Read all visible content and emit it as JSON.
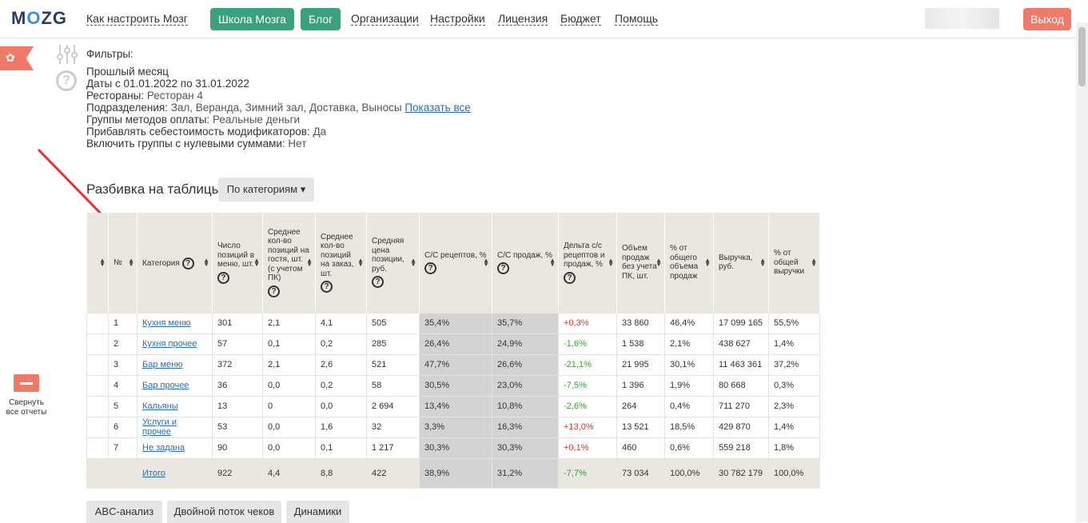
{
  "header": {
    "logo_text": "MOZG",
    "nav": [
      {
        "label": "Как настроить Мозг"
      },
      {
        "label": "Школа Мозга"
      },
      {
        "label": "Блог"
      },
      {
        "label": "Организации"
      },
      {
        "label": "Настройки"
      },
      {
        "label": "Лицензия"
      },
      {
        "label": "Бюджет"
      },
      {
        "label": "Помощь"
      }
    ],
    "logout_label": "Выход"
  },
  "filters": {
    "title": "Фильтры:",
    "period": "Прошлый месяц",
    "dates": "Даты с 01.01.2022 по 31.01.2022",
    "restaurants_label": "Рестораны:",
    "restaurants_value": "Ресторан 4",
    "divisions_label": "Подразделения:",
    "divisions_value": "Зал, Веранда, Зимний зал, Доставка, Выносы",
    "show_all": "Показать все",
    "payment_label": "Группы методов оплаты:",
    "payment_value": "Реальные деньги",
    "modifiers_label": "Прибавлять себестоимость модификаторов:",
    "modifiers_value": "Да",
    "zero_label": "Включить группы с нулевыми суммами:",
    "zero_value": "Нет"
  },
  "breakdown": {
    "label": "Разбивка на таблицы:",
    "selected": "По категориям"
  },
  "collapse_label": "Свернуть все отчеты",
  "table": {
    "columns": [
      "",
      "№",
      "Категория",
      "Число позиций в меню, шт.",
      "Среднее кол-во позиций на гостя, шт. (с учетом ПК)",
      "Среднее кол-во позиций на заказ, шт.",
      "Средняя цена позиции, руб.",
      "С/С рецептов, %",
      "С/С продаж, %",
      "Дельта с/с рецептов и продаж, %",
      "Объем продаж без учета ПК, шт.",
      "% от общего объема продаж",
      "Выручка, руб.",
      "% от общей выручки"
    ],
    "rows": [
      [
        "1",
        "Кухня меню",
        "301",
        "2,1",
        "4,1",
        "505",
        "35,4%",
        "35,7%",
        "+0,3%",
        "33 860",
        "46,4%",
        "17 099 165",
        "55,5%"
      ],
      [
        "2",
        "Кухня прочее",
        "57",
        "0,1",
        "0,2",
        "285",
        "26,4%",
        "24,9%",
        "-1,6%",
        "1 538",
        "2,1%",
        "438 627",
        "1,4%"
      ],
      [
        "3",
        "Бар меню",
        "372",
        "2,1",
        "2,6",
        "521",
        "47,7%",
        "26,6%",
        "-21,1%",
        "21 995",
        "30,1%",
        "11 463 361",
        "37,2%"
      ],
      [
        "4",
        "Бар прочее",
        "36",
        "0,0",
        "0,2",
        "58",
        "30,5%",
        "23,0%",
        "-7,5%",
        "1 396",
        "1,9%",
        "80 668",
        "0,3%"
      ],
      [
        "5",
        "Кальяны",
        "13",
        "0",
        "0,0",
        "2 694",
        "13,4%",
        "10,8%",
        "-2,6%",
        "264",
        "0,4%",
        "711 270",
        "2,3%"
      ],
      [
        "6",
        "Услуги и прочее",
        "53",
        "0,0",
        "1,6",
        "32",
        "3,3%",
        "16,3%",
        "+13,0%",
        "13 521",
        "18,5%",
        "429 870",
        "1,4%"
      ],
      [
        "7",
        "Не задана",
        "90",
        "0,0",
        "0,1",
        "1 217",
        "30,3%",
        "30,3%",
        "+0,1%",
        "460",
        "0,6%",
        "559 218",
        "1,8%"
      ]
    ],
    "total": [
      "",
      "Итого",
      "922",
      "4,4",
      "8,8",
      "422",
      "38,9%",
      "31,2%",
      "-7,7%",
      "73 034",
      "100,0%",
      "30 782 179",
      "100,0%"
    ]
  },
  "tabs": [
    "ABC-анализ",
    "Двойной поток чеков",
    "Динамики"
  ],
  "colors": {
    "accent_green": "#3aa17e",
    "logout_red": "#ef7a6a",
    "link": "#2a6db5"
  }
}
